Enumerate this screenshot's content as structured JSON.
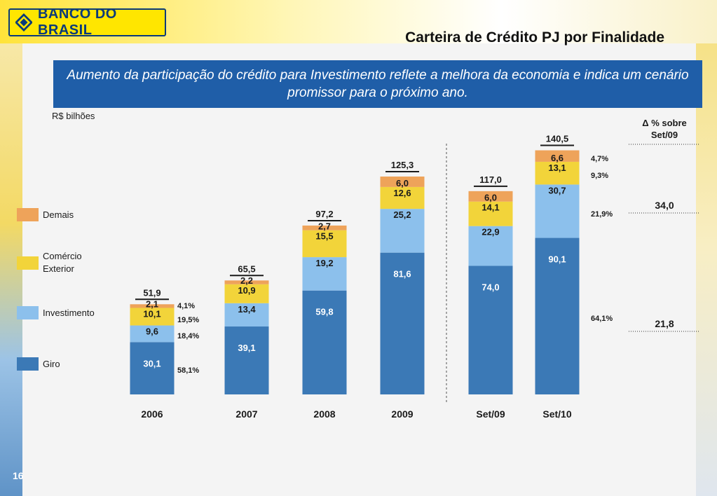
{
  "header": {
    "logo_text": "BANCO DO BRASIL",
    "title": "Carteira de Crédito PJ por Finalidade"
  },
  "subtitle": "Aumento da participação do crédito para Investimento reflete a melhora da economia e indica um cenário promissor para o próximo ano.",
  "unit_label": "R$ bilhões",
  "delta_header": {
    "line1": "Δ % sobre",
    "line2": "Set/09"
  },
  "page_number": "16",
  "colors": {
    "giro": "#3b79b6",
    "investimento": "#8cc0ec",
    "comercio_exterior": "#f2d43a",
    "demais": "#eea35a",
    "subtitle_bg": "#1f5ea8"
  },
  "legend": [
    {
      "label": "Demais",
      "color": "#eea35a"
    },
    {
      "label": "Comércio Exterior",
      "color": "#f2d43a"
    },
    {
      "label": "Investimento",
      "color": "#8cc0ec"
    },
    {
      "label": "Giro",
      "color": "#3b79b6"
    }
  ],
  "chart_data": {
    "type": "bar",
    "stacked": true,
    "categories": [
      "2006",
      "2007",
      "2008",
      "2009",
      "Set/09",
      "Set/10"
    ],
    "series": [
      {
        "name": "Giro",
        "values": [
          "30,1",
          "39,1",
          "59,8",
          "81,6",
          "74,0",
          "90,1"
        ]
      },
      {
        "name": "Investimento",
        "values": [
          "9,6",
          "13,4",
          "19,2",
          "25,2",
          "22,9",
          "30,7"
        ]
      },
      {
        "name": "Comércio Exterior",
        "values": [
          "10,1",
          "10,9",
          "15,5",
          "12,6",
          "14,1",
          "13,1"
        ]
      },
      {
        "name": "Demais",
        "values": [
          "2,1",
          "2,2",
          "2,7",
          "6,0",
          "6,0",
          "6,6"
        ]
      }
    ],
    "totals": [
      "51,9",
      "65,5",
      "97,2",
      "125,3",
      "117,0",
      "140,5"
    ],
    "shares_2006": [
      "58,1%",
      "18,4%",
      "19,5%",
      "4,1%"
    ],
    "shares_set10": [
      "64,1%",
      "21,9%",
      "9,3%",
      "4,7%"
    ],
    "delta_values": [
      "21,8",
      "34,0"
    ]
  }
}
